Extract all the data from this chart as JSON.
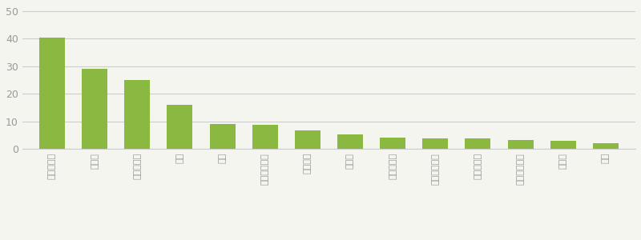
{
  "categories": [
    "部屋明るく",
    "優しい",
    "リラックス",
    "季節",
    "空気",
    "気持ち晴れた",
    "絆・感謝",
    "やる気",
    "褒められた",
    "子どもが興味",
    "家族の会話",
    "食事おいしく",
    "眠れる",
    "来客"
  ],
  "values": [
    40.5,
    29.0,
    25.0,
    16.0,
    9.0,
    8.8,
    6.8,
    5.2,
    4.0,
    3.8,
    3.7,
    3.2,
    2.8,
    2.0
  ],
  "bar_color": "#8ab840",
  "background_color": "#f5f5f0",
  "yticks": [
    0,
    10,
    20,
    30,
    40,
    50
  ],
  "ylim": [
    0,
    52
  ],
  "grid_color": "#cccccc",
  "tick_label_color": "#999999",
  "bar_width": 0.6
}
